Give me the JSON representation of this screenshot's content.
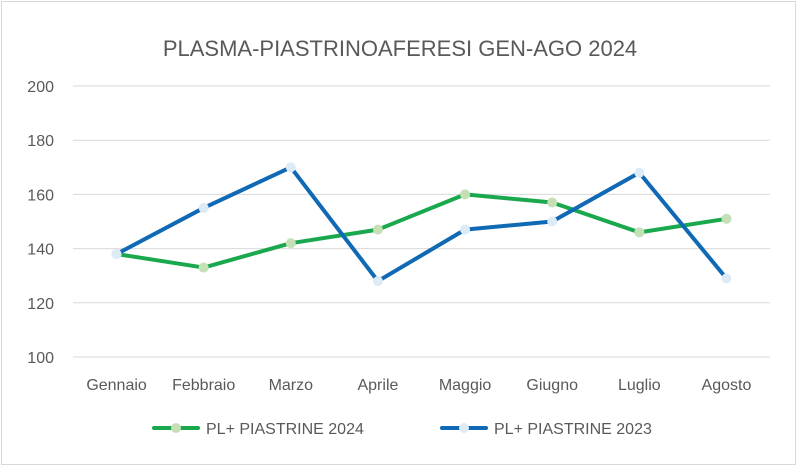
{
  "chart_data": {
    "type": "line",
    "title": "PLASMA-PIASTRINOAFERESI GEN-AGO 2024",
    "xlabel": "",
    "ylabel": "",
    "categories": [
      "Gennaio",
      "Febbraio",
      "Marzo",
      "Aprile",
      "Maggio",
      "Giugno",
      "Luglio",
      "Agosto"
    ],
    "ylim": [
      100,
      200
    ],
    "yticks": [
      100,
      120,
      140,
      160,
      180,
      200
    ],
    "grid": true,
    "legend": "bottom",
    "series": [
      {
        "name": "PL+ PIASTRINE 2024",
        "values": [
          138,
          133,
          142,
          147,
          160,
          157,
          146,
          151
        ],
        "line_color": "#1aa84e",
        "marker_color": "#c5e0b4"
      },
      {
        "name": "PL+ PIASTRINE 2023",
        "values": [
          138,
          155,
          170,
          128,
          147,
          150,
          168,
          129
        ],
        "line_color": "#0f69b4",
        "marker_color": "#ddebf7"
      }
    ]
  }
}
